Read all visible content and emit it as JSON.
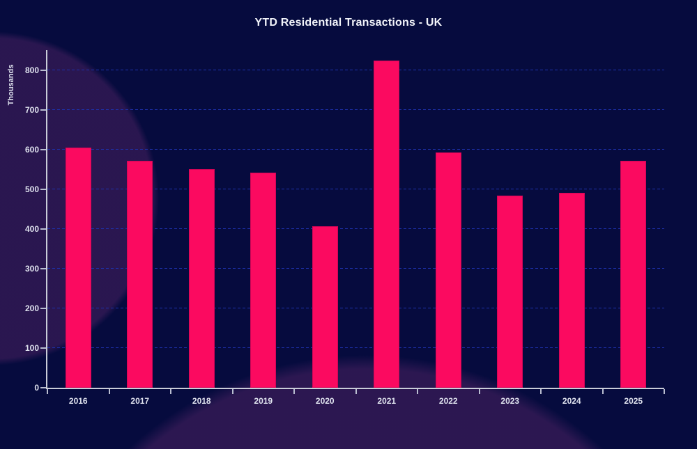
{
  "chart_data": {
    "type": "bar",
    "title": "YTD Residential Transactions - UK",
    "ylabel": "Thousands",
    "xlabel": "",
    "categories": [
      "2016",
      "2017",
      "2018",
      "2019",
      "2020",
      "2021",
      "2022",
      "2023",
      "2024",
      "2025"
    ],
    "values": [
      605,
      572,
      551,
      542,
      406,
      824,
      592,
      484,
      490,
      572
    ],
    "ylim": [
      0,
      850
    ],
    "yticks": [
      0,
      100,
      200,
      300,
      400,
      500,
      600,
      700,
      800
    ],
    "grid": true,
    "legend": false,
    "colors": {
      "bar": "#fb0a60",
      "bar_edge": "#d40557",
      "background": "#060b3e",
      "background_blob": "#2a1650",
      "gridline": "#1e31ac",
      "axis_line": "#c9ccd8",
      "tick_text": "#dfe2ee",
      "title_text": "#f2f4fa"
    }
  }
}
